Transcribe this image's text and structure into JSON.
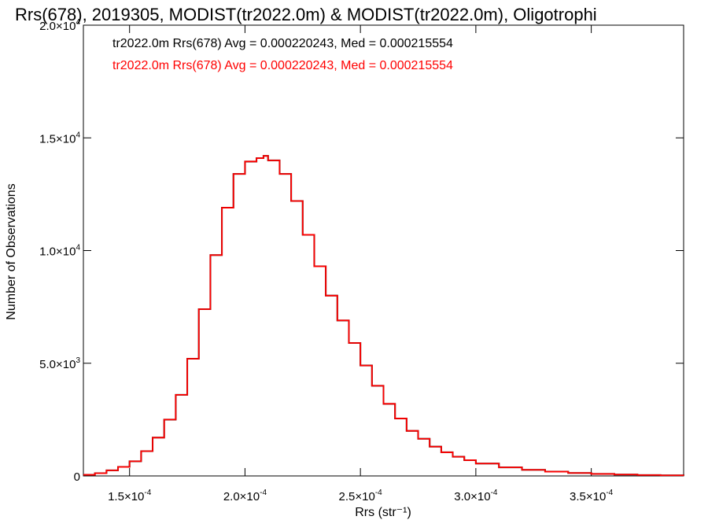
{
  "chart_data": {
    "type": "histogram-step",
    "title": "Rrs(678), 2019305, MODIST(tr2022.0m) & MODIST(tr2022.0m), Oligotrophi",
    "xlabel": "Rrs (str⁻¹)",
    "ylabel": "Number of Observations",
    "xlim": [
      0.00013,
      0.00039
    ],
    "ylim": [
      0,
      20000
    ],
    "x_ticks": [
      {
        "value": 0.00015,
        "mantissa": "1.5",
        "exponent": "-4"
      },
      {
        "value": 0.0002,
        "mantissa": "2.0",
        "exponent": "-4"
      },
      {
        "value": 0.00025,
        "mantissa": "2.5",
        "exponent": "-4"
      },
      {
        "value": 0.0003,
        "mantissa": "3.0",
        "exponent": "-4"
      },
      {
        "value": 0.00035,
        "mantissa": "3.5",
        "exponent": "-4"
      }
    ],
    "y_ticks": [
      {
        "value": 0,
        "mantissa": "0",
        "exponent": ""
      },
      {
        "value": 5000,
        "mantissa": "5.0",
        "exponent": "3"
      },
      {
        "value": 10000,
        "mantissa": "1.0",
        "exponent": "4"
      },
      {
        "value": 15000,
        "mantissa": "1.5",
        "exponent": "4"
      },
      {
        "value": 20000,
        "mantissa": "2.0",
        "exponent": "4"
      }
    ],
    "tick_times_sign": "×",
    "tick_base": "10",
    "grid": false,
    "legend_position": "top-left",
    "series": [
      {
        "name": "tr2022.0m Rrs(678) Avg = 0.000220243, Med = 0.000215554",
        "color": "#000000",
        "x": [
          0.00013,
          0.000135,
          0.00014,
          0.000145,
          0.00015,
          0.000155,
          0.00016,
          0.000165,
          0.00017,
          0.000175,
          0.00018,
          0.000185,
          0.00019,
          0.000195,
          0.0002,
          0.000205,
          0.000208,
          0.00021,
          0.000215,
          0.00022,
          0.000225,
          0.00023,
          0.000235,
          0.00024,
          0.000245,
          0.00025,
          0.000255,
          0.00026,
          0.000265,
          0.00027,
          0.000275,
          0.00028,
          0.000285,
          0.00029,
          0.000295,
          0.0003,
          0.00031,
          0.00032,
          0.00033,
          0.00034,
          0.00035,
          0.00036,
          0.00037,
          0.00038,
          0.00039
        ],
        "y": [
          50,
          120,
          250,
          400,
          650,
          1100,
          1700,
          2500,
          3600,
          5200,
          7400,
          9800,
          11900,
          13400,
          13950,
          14100,
          14200,
          14000,
          13400,
          12200,
          10700,
          9300,
          8000,
          6900,
          5900,
          4900,
          4000,
          3200,
          2550,
          2000,
          1650,
          1300,
          1050,
          850,
          700,
          550,
          380,
          270,
          190,
          130,
          90,
          60,
          40,
          25,
          15
        ]
      },
      {
        "name": "tr2022.0m Rrs(678) Avg = 0.000220243, Med = 0.000215554",
        "color": "#ff0000",
        "x": [
          0.00013,
          0.000135,
          0.00014,
          0.000145,
          0.00015,
          0.000155,
          0.00016,
          0.000165,
          0.00017,
          0.000175,
          0.00018,
          0.000185,
          0.00019,
          0.000195,
          0.0002,
          0.000205,
          0.000208,
          0.00021,
          0.000215,
          0.00022,
          0.000225,
          0.00023,
          0.000235,
          0.00024,
          0.000245,
          0.00025,
          0.000255,
          0.00026,
          0.000265,
          0.00027,
          0.000275,
          0.00028,
          0.000285,
          0.00029,
          0.000295,
          0.0003,
          0.00031,
          0.00032,
          0.00033,
          0.00034,
          0.00035,
          0.00036,
          0.00037,
          0.00038,
          0.00039
        ],
        "y": [
          50,
          120,
          250,
          400,
          650,
          1100,
          1700,
          2500,
          3600,
          5200,
          7400,
          9800,
          11900,
          13400,
          13950,
          14100,
          14200,
          14000,
          13400,
          12200,
          10700,
          9300,
          8000,
          6900,
          5900,
          4900,
          4000,
          3200,
          2550,
          2000,
          1650,
          1300,
          1050,
          850,
          700,
          550,
          380,
          270,
          190,
          130,
          90,
          60,
          40,
          25,
          15
        ]
      }
    ]
  }
}
